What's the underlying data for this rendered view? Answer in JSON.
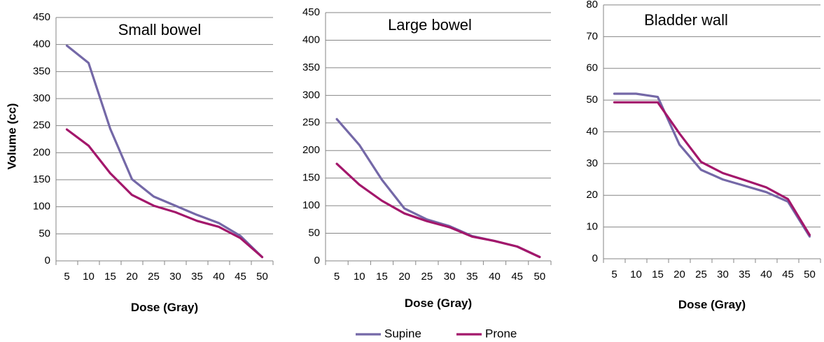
{
  "chart_data": [
    {
      "type": "line",
      "title": "Small bowel",
      "xlabel": "Dose (Gray)",
      "ylabel": "Volume (cc)",
      "ylim": [
        0,
        450
      ],
      "yticks": [
        0,
        50,
        100,
        150,
        200,
        250,
        300,
        350,
        400,
        450
      ],
      "categories": [
        "5",
        "10",
        "15",
        "20",
        "25",
        "30",
        "35",
        "40",
        "45",
        "50"
      ],
      "grid": true,
      "series": [
        {
          "name": "Supine",
          "values": [
            398,
            366,
            244,
            151,
            119,
            102,
            85,
            70,
            46,
            7
          ]
        },
        {
          "name": "Prone",
          "values": [
            243,
            213,
            162,
            122,
            102,
            90,
            74,
            63,
            42,
            7
          ]
        }
      ]
    },
    {
      "type": "line",
      "title": "Large bowel",
      "xlabel": "Dose (Gray)",
      "ylabel": "",
      "ylim": [
        0,
        450
      ],
      "yticks": [
        0,
        50,
        100,
        150,
        200,
        250,
        300,
        350,
        400,
        450
      ],
      "categories": [
        "5",
        "10",
        "15",
        "20",
        "25",
        "30",
        "35",
        "40",
        "45",
        "50"
      ],
      "grid": true,
      "series": [
        {
          "name": "Supine",
          "values": [
            257,
            210,
            147,
            95,
            75,
            63,
            45,
            36,
            26,
            7
          ]
        },
        {
          "name": "Prone",
          "values": [
            176,
            138,
            109,
            86,
            72,
            61,
            44,
            36,
            26,
            7
          ]
        }
      ]
    },
    {
      "type": "line",
      "title": "Bladder wall",
      "xlabel": "Dose (Gray)",
      "ylabel": "",
      "ylim": [
        0,
        80
      ],
      "yticks": [
        0,
        10,
        20,
        30,
        40,
        50,
        60,
        70,
        80
      ],
      "categories": [
        "5",
        "10",
        "15",
        "20",
        "25",
        "30",
        "35",
        "40",
        "45",
        "50"
      ],
      "grid": true,
      "series": [
        {
          "name": "Supine",
          "values": [
            52,
            52,
            51,
            36,
            28,
            25,
            23,
            21,
            18,
            7
          ]
        },
        {
          "name": "Prone",
          "values": [
            49.3,
            49.3,
            49.3,
            39.5,
            30.5,
            27,
            24.8,
            22.5,
            18.8,
            7.5
          ]
        }
      ]
    }
  ],
  "legend": {
    "placement": "bottom-center",
    "items": [
      {
        "name": "Supine",
        "color": "#7468A7"
      },
      {
        "name": "Prone",
        "color": "#A3176B"
      }
    ]
  }
}
